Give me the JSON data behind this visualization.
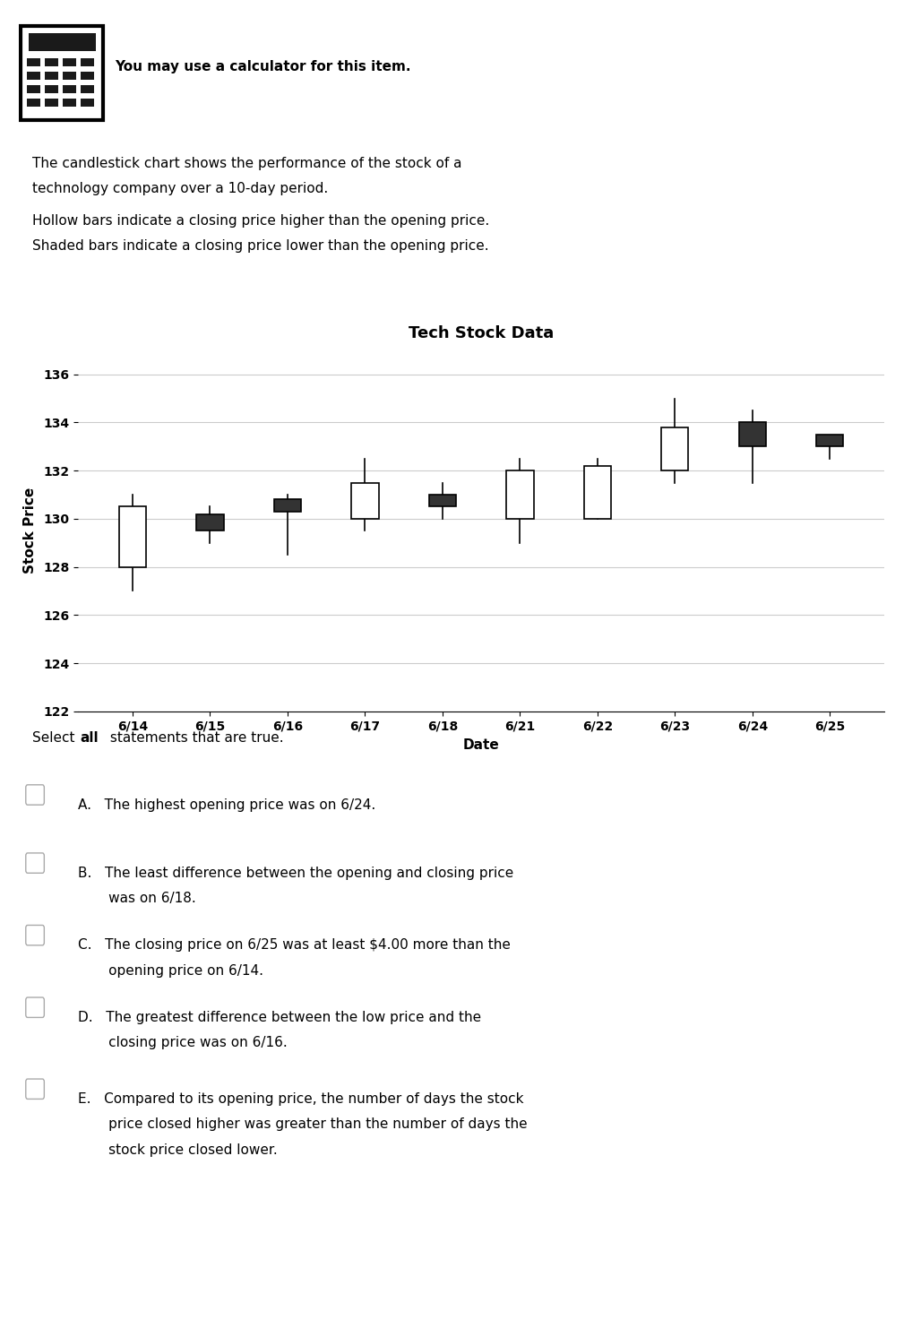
{
  "title": "Tech Stock Data",
  "xlabel": "Date",
  "ylabel": "Stock Price",
  "ylim": [
    122,
    137
  ],
  "yticks": [
    122,
    124,
    126,
    128,
    130,
    132,
    134,
    136
  ],
  "dates": [
    "6/14",
    "6/15",
    "6/16",
    "6/17",
    "6/18",
    "6/21",
    "6/22",
    "6/23",
    "6/24",
    "6/25"
  ],
  "open": [
    128.0,
    130.2,
    130.8,
    130.0,
    131.0,
    130.0,
    130.0,
    132.0,
    134.0,
    133.5
  ],
  "close": [
    130.5,
    129.5,
    130.3,
    131.5,
    130.5,
    132.0,
    132.2,
    133.8,
    133.0,
    133.0
  ],
  "high": [
    131.0,
    130.5,
    131.0,
    132.5,
    131.5,
    132.5,
    132.5,
    135.0,
    134.5,
    133.5
  ],
  "low": [
    127.0,
    129.0,
    128.5,
    129.5,
    130.0,
    129.0,
    131.5,
    131.5,
    131.5,
    132.5
  ],
  "hollow_color": "#ffffff",
  "shaded_color": "#333333",
  "edge_color": "#000000",
  "bg_color": "#ffffff",
  "grid_color": "#cccccc",
  "title_fontsize": 13,
  "label_fontsize": 11,
  "tick_fontsize": 10,
  "body_fontsize": 11,
  "calc_text": "You may use a calculator for this item.",
  "desc_line1": "The candlestick chart shows the performance of the stock of a",
  "desc_line2": "technology company over a 10-day period.",
  "desc_line3": "Hollow bars indicate a closing price higher than the opening price.",
  "desc_line4": "Shaded bars indicate a closing price lower than the opening price.",
  "q_pre": "Select ",
  "q_bold": "all",
  "q_post": " statements that are true.",
  "choice_A": "A.   The highest opening price was on 6/24.",
  "choice_B1": "B.   The least difference between the opening and closing price",
  "choice_B2": "       was on 6/18.",
  "choice_C1": "C.   The closing price on 6/25 was at least $4.00 more than the",
  "choice_C2": "       opening price on 6/14.",
  "choice_D1": "D.   The greatest difference between the low price and the",
  "choice_D2": "       closing price was on 6/16.",
  "choice_E1": "E.   Compared to its opening price, the number of days the stock",
  "choice_E2": "       price closed higher was greater than the number of days the",
  "choice_E3": "       stock price closed lower."
}
